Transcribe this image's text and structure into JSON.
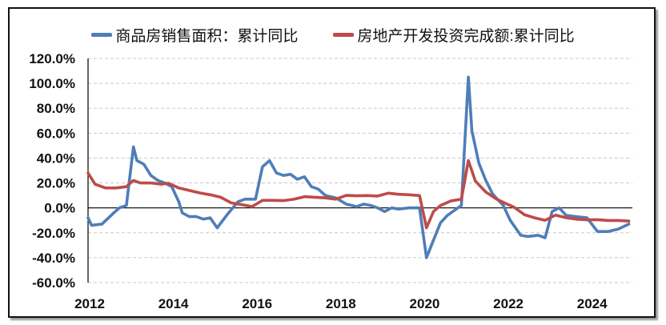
{
  "chart_data": {
    "type": "line",
    "title": "",
    "xlabel": "",
    "ylabel": "",
    "ylim": [
      -60,
      120
    ],
    "xlim": [
      "2012-01",
      "2024-12"
    ],
    "grid": "horizontal dashed",
    "legend_position": "top",
    "y_ticks": [
      "120.0%",
      "100.0%",
      "80.0%",
      "60.0%",
      "40.0%",
      "20.0%",
      "0.0%",
      "-20.0%",
      "-40.0%",
      "-60.0%"
    ],
    "y_tick_values": [
      120,
      100,
      80,
      60,
      40,
      20,
      0,
      -20,
      -40,
      -60
    ],
    "x_ticks": [
      "2012",
      "2014",
      "2016",
      "2018",
      "2020",
      "2022",
      "2024"
    ],
    "series": [
      {
        "name": "商品房销售面积：累计同比",
        "color": "#4F7EB8",
        "points": [
          [
            "2012-01",
            -8
          ],
          [
            "2012-02",
            -14
          ],
          [
            "2012-05",
            -13
          ],
          [
            "2012-08",
            -5
          ],
          [
            "2012-10",
            0
          ],
          [
            "2012-12",
            2
          ],
          [
            "2013-02",
            49
          ],
          [
            "2013-03",
            38
          ],
          [
            "2013-05",
            35
          ],
          [
            "2013-07",
            26
          ],
          [
            "2013-09",
            22
          ],
          [
            "2013-11",
            20
          ],
          [
            "2014-01",
            17
          ],
          [
            "2014-03",
            5
          ],
          [
            "2014-04",
            -4
          ],
          [
            "2014-06",
            -7
          ],
          [
            "2014-08",
            -7
          ],
          [
            "2014-10",
            -9
          ],
          [
            "2014-12",
            -8
          ],
          [
            "2015-02",
            -16
          ],
          [
            "2015-05",
            -5
          ],
          [
            "2015-08",
            5
          ],
          [
            "2015-10",
            7
          ],
          [
            "2016-01",
            7
          ],
          [
            "2016-03",
            33
          ],
          [
            "2016-05",
            38
          ],
          [
            "2016-07",
            28
          ],
          [
            "2016-09",
            26
          ],
          [
            "2016-11",
            27
          ],
          [
            "2017-01",
            23
          ],
          [
            "2017-03",
            25
          ],
          [
            "2017-05",
            17
          ],
          [
            "2017-07",
            15
          ],
          [
            "2017-09",
            10
          ],
          [
            "2017-12",
            8
          ],
          [
            "2018-03",
            3
          ],
          [
            "2018-06",
            1
          ],
          [
            "2018-08",
            3
          ],
          [
            "2018-10",
            2
          ],
          [
            "2018-12",
            0
          ],
          [
            "2019-02",
            -3
          ],
          [
            "2019-04",
            0
          ],
          [
            "2019-06",
            -1
          ],
          [
            "2019-09",
            0
          ],
          [
            "2019-12",
            0
          ],
          [
            "2020-02",
            -40
          ],
          [
            "2020-04",
            -26
          ],
          [
            "2020-06",
            -12
          ],
          [
            "2020-08",
            -6
          ],
          [
            "2020-10",
            -2
          ],
          [
            "2020-12",
            2
          ],
          [
            "2021-02",
            105
          ],
          [
            "2021-03",
            62
          ],
          [
            "2021-05",
            36
          ],
          [
            "2021-07",
            22
          ],
          [
            "2021-09",
            11
          ],
          [
            "2021-12",
            2
          ],
          [
            "2022-02",
            -10
          ],
          [
            "2022-05",
            -22
          ],
          [
            "2022-07",
            -23
          ],
          [
            "2022-10",
            -22
          ],
          [
            "2022-12",
            -24
          ],
          [
            "2023-02",
            -3
          ],
          [
            "2023-04",
            0
          ],
          [
            "2023-06",
            -6
          ],
          [
            "2023-09",
            -7
          ],
          [
            "2023-12",
            -8
          ],
          [
            "2024-03",
            -19
          ],
          [
            "2024-06",
            -19
          ],
          [
            "2024-09",
            -17
          ],
          [
            "2024-12",
            -13
          ]
        ]
      },
      {
        "name": "房地产开发投资完成额:累计同比",
        "color": "#BE4B48",
        "points": [
          [
            "2012-01",
            28
          ],
          [
            "2012-03",
            19
          ],
          [
            "2012-06",
            16
          ],
          [
            "2012-09",
            16
          ],
          [
            "2012-12",
            17
          ],
          [
            "2013-02",
            22
          ],
          [
            "2013-04",
            20
          ],
          [
            "2013-07",
            20
          ],
          [
            "2013-10",
            19
          ],
          [
            "2013-12",
            19.8
          ],
          [
            "2014-03",
            16
          ],
          [
            "2014-06",
            14
          ],
          [
            "2014-09",
            12
          ],
          [
            "2014-12",
            10.5
          ],
          [
            "2015-03",
            8.5
          ],
          [
            "2015-06",
            4
          ],
          [
            "2015-09",
            2.6
          ],
          [
            "2015-12",
            1
          ],
          [
            "2016-03",
            6
          ],
          [
            "2016-06",
            6
          ],
          [
            "2016-09",
            5.8
          ],
          [
            "2016-12",
            6.9
          ],
          [
            "2017-03",
            9
          ],
          [
            "2017-06",
            8.5
          ],
          [
            "2017-09",
            8
          ],
          [
            "2017-12",
            7
          ],
          [
            "2018-03",
            10
          ],
          [
            "2018-06",
            9.7
          ],
          [
            "2018-09",
            9.9
          ],
          [
            "2018-12",
            9.5
          ],
          [
            "2019-03",
            11.8
          ],
          [
            "2019-06",
            10.9
          ],
          [
            "2019-09",
            10.5
          ],
          [
            "2019-12",
            9.9
          ],
          [
            "2020-02",
            -16
          ],
          [
            "2020-04",
            -3
          ],
          [
            "2020-06",
            1.9
          ],
          [
            "2020-09",
            5.6
          ],
          [
            "2020-12",
            7
          ],
          [
            "2021-02",
            38
          ],
          [
            "2021-04",
            21.6
          ],
          [
            "2021-07",
            12.7
          ],
          [
            "2021-10",
            7.2
          ],
          [
            "2021-12",
            4.4
          ],
          [
            "2022-03",
            0.7
          ],
          [
            "2022-06",
            -5.4
          ],
          [
            "2022-09",
            -8
          ],
          [
            "2022-12",
            -10
          ],
          [
            "2023-03",
            -5.8
          ],
          [
            "2023-06",
            -7.9
          ],
          [
            "2023-09",
            -9.1
          ],
          [
            "2023-12",
            -9.6
          ],
          [
            "2024-03",
            -9.5
          ],
          [
            "2024-06",
            -10.1
          ],
          [
            "2024-09",
            -10.1
          ],
          [
            "2024-12",
            -10.6
          ]
        ]
      }
    ]
  }
}
